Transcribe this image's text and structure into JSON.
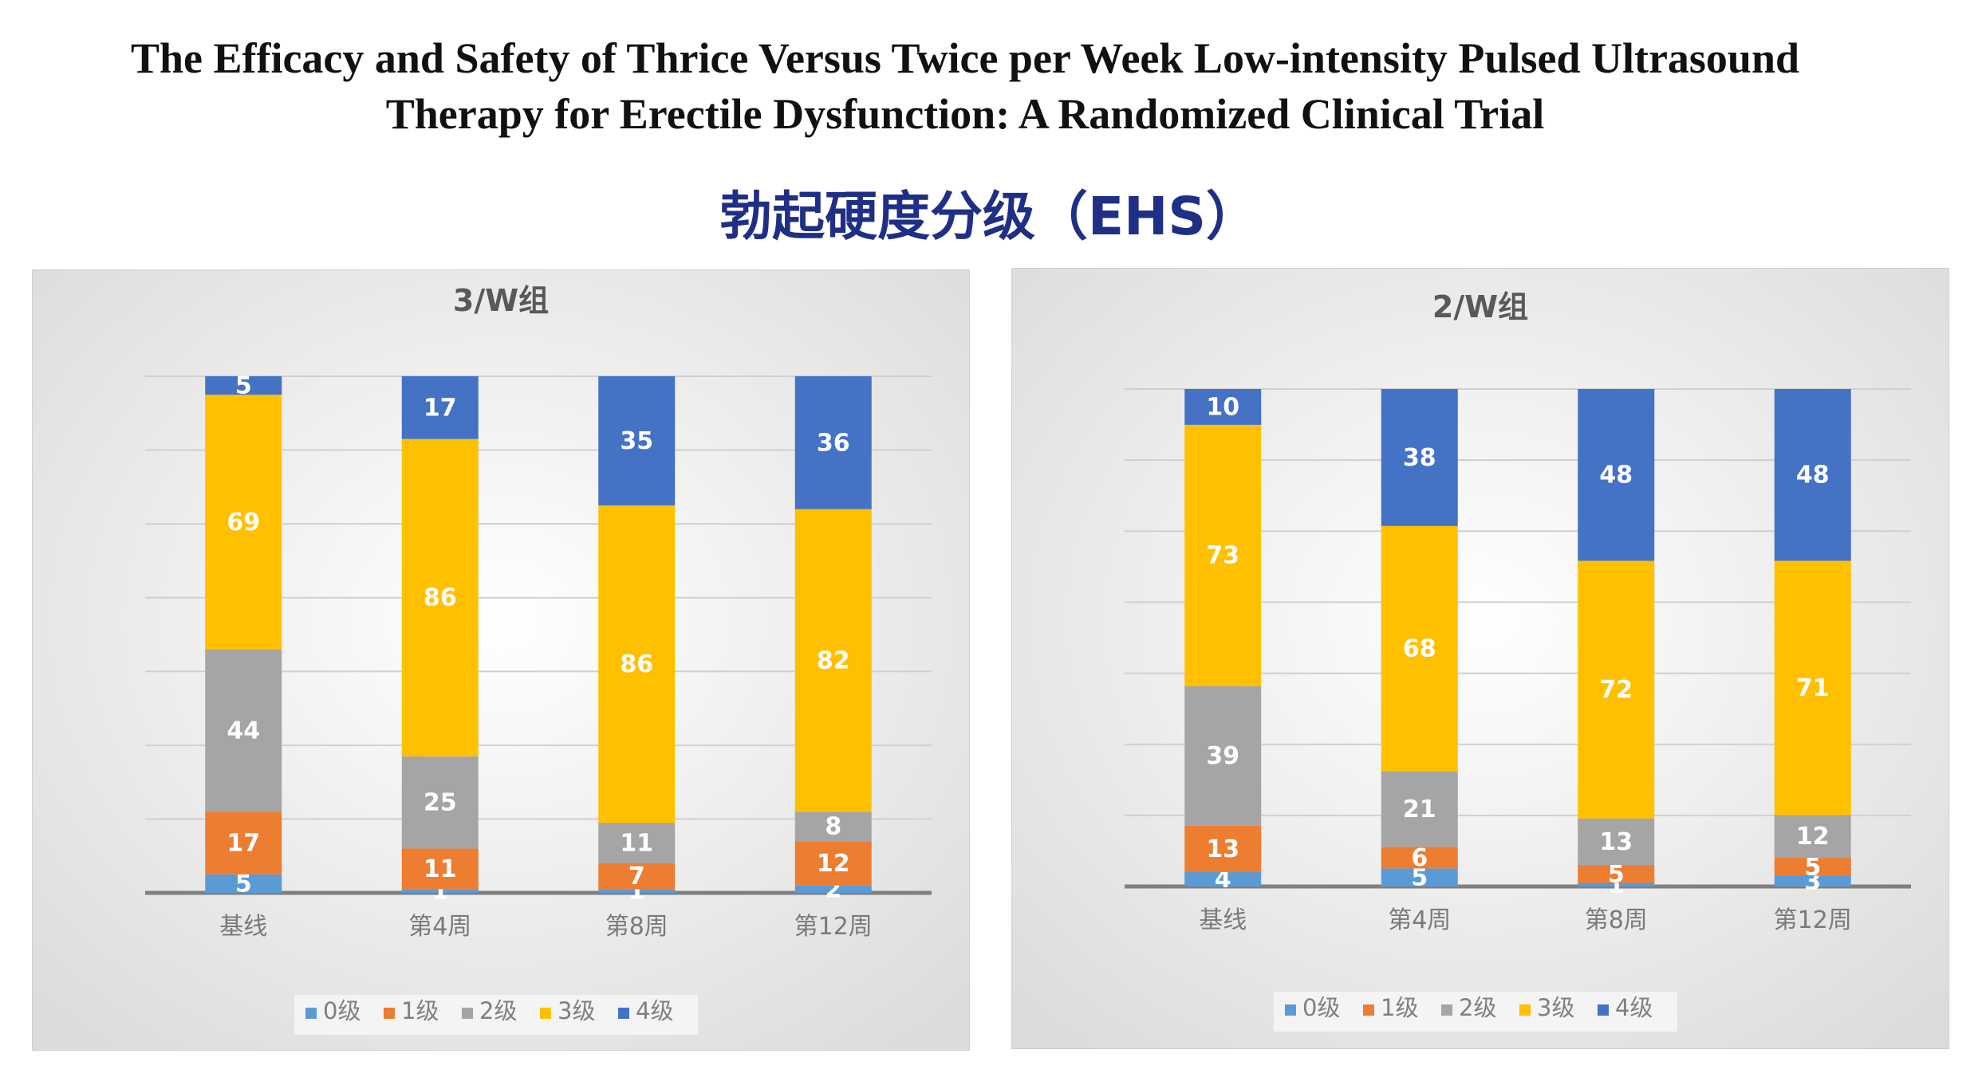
{
  "paper_title_line1": "The Efficacy and Safety of Thrice Versus Twice per Week Low-intensity Pulsed Ultrasound",
  "paper_title_line2": "Therapy for Erectile Dysfunction: A Randomized Clinical Trial",
  "section_title": "勃起硬度分级（EHS）",
  "colors": {
    "grade0": "#5b9bd5",
    "grade1": "#ed7d31",
    "grade2": "#a5a5a5",
    "grade3": "#ffc000",
    "grade4": "#4472c4",
    "panel_background": "#e8e8e8",
    "gridline": "#d0d0d0",
    "axis": "#7f7f7f"
  },
  "chart_data": [
    {
      "type": "bar",
      "stacked": true,
      "title": "3/W组",
      "categories": [
        "基线",
        "第4周",
        "第8周",
        "第12周"
      ],
      "series": [
        {
          "name": "0级",
          "values": [
            5,
            1,
            1,
            2
          ]
        },
        {
          "name": "1级",
          "values": [
            17,
            11,
            7,
            12
          ]
        },
        {
          "name": "2级",
          "values": [
            44,
            25,
            11,
            8
          ]
        },
        {
          "name": "3级",
          "values": [
            69,
            86,
            86,
            82
          ]
        },
        {
          "name": "4级",
          "values": [
            5,
            17,
            35,
            36
          ]
        }
      ],
      "legend": "bottom",
      "grid": true
    },
    {
      "type": "bar",
      "stacked": true,
      "title": "2/W组",
      "categories": [
        "基线",
        "第4周",
        "第8周",
        "第12周"
      ],
      "series": [
        {
          "name": "0级",
          "values": [
            4,
            5,
            1,
            3
          ]
        },
        {
          "name": "1级",
          "values": [
            13,
            6,
            5,
            5
          ]
        },
        {
          "name": "2级",
          "values": [
            39,
            21,
            13,
            12
          ]
        },
        {
          "name": "3级",
          "values": [
            73,
            68,
            72,
            71
          ]
        },
        {
          "name": "4级",
          "values": [
            10,
            38,
            48,
            48
          ]
        }
      ],
      "legend": "bottom",
      "grid": true
    }
  ]
}
